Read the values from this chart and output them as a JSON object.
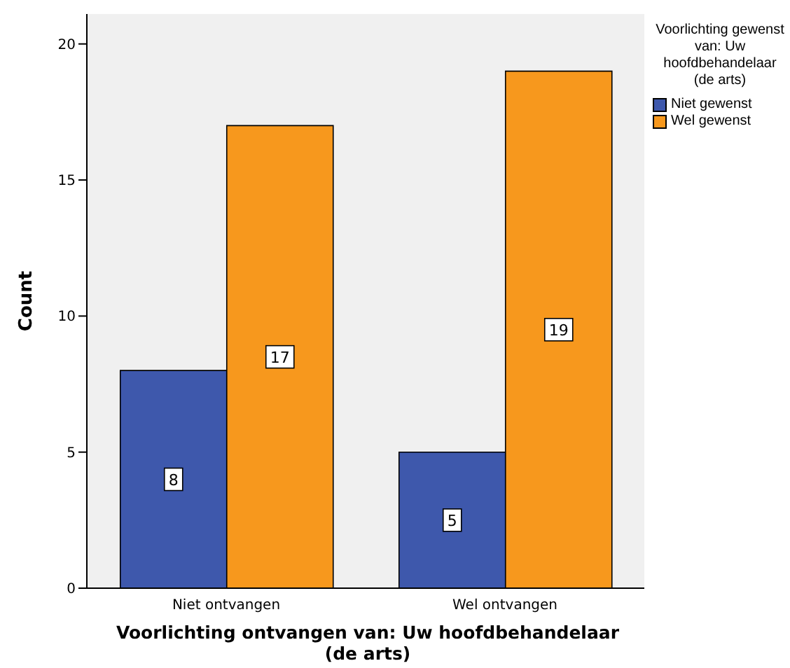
{
  "chart_data": {
    "type": "bar",
    "xlabel": "Voorlichting ontvangen van: Uw hoofdbehandelaar (de arts)",
    "ylabel": "Count",
    "legend_title": "Voorlichting gewenst van: Uw hoofdbehandelaar (de arts)",
    "categories": [
      "Niet ontvangen",
      "Wel ontvangen"
    ],
    "series": [
      {
        "name": "Niet gewenst",
        "color": "#3e58ac",
        "values": [
          8,
          5
        ]
      },
      {
        "name": "Wel gewenst",
        "color": "#f7981d",
        "values": [
          17,
          19
        ]
      }
    ],
    "ylim": [
      0,
      21.1
    ],
    "yticks": [
      0,
      5,
      10,
      15,
      20
    ],
    "grid": false,
    "legend": "top right",
    "data_labels": true
  }
}
